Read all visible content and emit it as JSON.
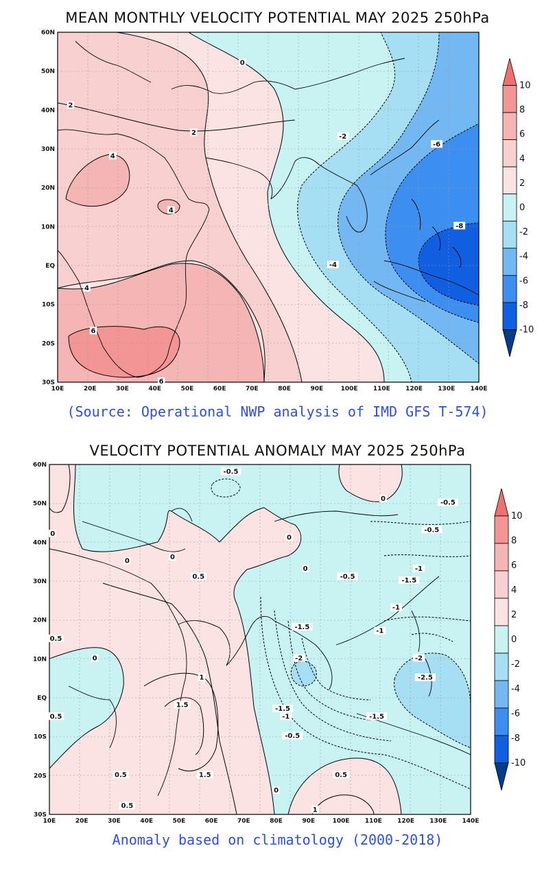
{
  "panel1": {
    "title": "MEAN MONTHLY VELOCITY POTENTIAL MAY 2025 250hPa",
    "source": "(Source: Operational NWP analysis of IMD GFS T-574)",
    "lat_labels": [
      "60N",
      "50N",
      "40N",
      "30N",
      "20N",
      "10N",
      "EQ",
      "10S",
      "20S",
      "30S"
    ],
    "lon_labels": [
      "10E",
      "20E",
      "30E",
      "40E",
      "50E",
      "60E",
      "70E",
      "80E",
      "90E",
      "100E",
      "110E",
      "120E",
      "130E",
      "140E"
    ],
    "contour_labels": [
      {
        "text": "0",
        "lon": 67,
        "lat": 52
      },
      {
        "text": "2",
        "lon": 14,
        "lat": 41
      },
      {
        "text": "2",
        "lon": 52,
        "lat": 34
      },
      {
        "text": "4",
        "lon": 27,
        "lat": 28
      },
      {
        "text": "4",
        "lon": 45,
        "lat": 14
      },
      {
        "text": "4",
        "lon": 19,
        "lat": -6
      },
      {
        "text": "6",
        "lon": 21,
        "lat": -17
      },
      {
        "text": "6",
        "lon": 42,
        "lat": -30
      },
      {
        "text": "-2",
        "lon": 98,
        "lat": 33
      },
      {
        "text": "-4",
        "lon": 95,
        "lat": 0
      },
      {
        "text": "-6",
        "lon": 127,
        "lat": 31
      },
      {
        "text": "-8",
        "lon": 134,
        "lat": 10
      }
    ],
    "colorbar": {
      "labels": [
        "10",
        "8",
        "6",
        "4",
        "2",
        "0",
        "-2",
        "-4",
        "-6",
        "-8",
        "-10"
      ],
      "colors": [
        "#f07070",
        "#f39595",
        "#f6b5b5",
        "#f9d0d0",
        "#fbe3e3",
        "#c9f3f3",
        "#a6dff3",
        "#74b8f3",
        "#3c8ef0",
        "#0f5fe0",
        "#023d8c"
      ]
    }
  },
  "panel2": {
    "title": "VELOCITY POTENTIAL ANOMALY MAY 2025 250hPa",
    "source": "Anomaly based on climatology (2000-2018)",
    "lat_labels": [
      "60N",
      "50N",
      "40N",
      "30N",
      "20N",
      "10N",
      "EQ",
      "10S",
      "20S",
      "30S"
    ],
    "lon_labels": [
      "10E",
      "20E",
      "30E",
      "40E",
      "50E",
      "60E",
      "70E",
      "80E",
      "90E",
      "100E",
      "110E",
      "120E",
      "130E",
      "140E"
    ],
    "contour_labels": [
      {
        "text": "-0.5",
        "lon": 66,
        "lat": 58
      },
      {
        "text": "0",
        "lon": 11,
        "lat": 42
      },
      {
        "text": "0",
        "lon": 34,
        "lat": 35
      },
      {
        "text": "0",
        "lon": 48,
        "lat": 36
      },
      {
        "text": "0.5",
        "lon": 56,
        "lat": 31
      },
      {
        "text": "0.5",
        "lon": 12,
        "lat": 15
      },
      {
        "text": "0",
        "lon": 24,
        "lat": 10
      },
      {
        "text": "0.5",
        "lon": 12,
        "lat": -5
      },
      {
        "text": "1",
        "lon": 57,
        "lat": 5
      },
      {
        "text": "1.5",
        "lon": 51,
        "lat": -2
      },
      {
        "text": "1.5",
        "lon": 58,
        "lat": -20
      },
      {
        "text": "0.5",
        "lon": 32,
        "lat": -20
      },
      {
        "text": "0.5",
        "lon": 34,
        "lat": -28
      },
      {
        "text": "0",
        "lon": 113,
        "lat": 51
      },
      {
        "text": "0",
        "lon": 84,
        "lat": 41
      },
      {
        "text": "0",
        "lon": 89,
        "lat": 33
      },
      {
        "text": "-0.5",
        "lon": 102,
        "lat": 31
      },
      {
        "text": "-1.5",
        "lon": 121,
        "lat": 30
      },
      {
        "text": "-1",
        "lon": 117,
        "lat": 23
      },
      {
        "text": "-1",
        "lon": 112,
        "lat": 17
      },
      {
        "text": "-1.5",
        "lon": 88,
        "lat": 18
      },
      {
        "text": "-2",
        "lon": 87,
        "lat": 10
      },
      {
        "text": "-1.5",
        "lon": 82,
        "lat": -3
      },
      {
        "text": "-1",
        "lon": 83,
        "lat": -5
      },
      {
        "text": "-0.5",
        "lon": 85,
        "lat": -10
      },
      {
        "text": "-1.5",
        "lon": 111,
        "lat": -5
      },
      {
        "text": "-2",
        "lon": 124,
        "lat": 10
      },
      {
        "text": "-2.5",
        "lon": 126,
        "lat": 5
      },
      {
        "text": "-0.5",
        "lon": 133,
        "lat": 50
      },
      {
        "text": "-0.5",
        "lon": 128,
        "lat": 43
      },
      {
        "text": "-1",
        "lon": 124,
        "lat": 33
      },
      {
        "text": "0.5",
        "lon": 100,
        "lat": -20
      },
      {
        "text": "0",
        "lon": 80,
        "lat": -24
      },
      {
        "text": "1",
        "lon": 92,
        "lat": -29
      }
    ],
    "colorbar": {
      "labels": [
        "10",
        "8",
        "6",
        "4",
        "2",
        "0",
        "-2",
        "-4",
        "-6",
        "-8",
        "-10"
      ],
      "colors": [
        "#f07070",
        "#f39595",
        "#f6b5b5",
        "#f9d0d0",
        "#fbe3e3",
        "#c9f3f3",
        "#a6dff3",
        "#74b8f3",
        "#3c8ef0",
        "#0f5fe0",
        "#023d8c"
      ]
    }
  }
}
